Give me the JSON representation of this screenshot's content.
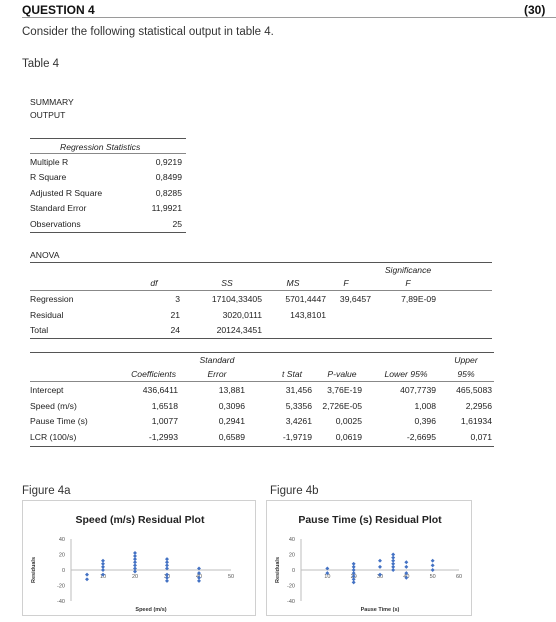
{
  "question": {
    "title": "QUESTION 4",
    "marks": "(30)"
  },
  "intro": "Consider the following statistical output in table 4.",
  "table_label": "Table 4",
  "summary_line1": "SUMMARY",
  "summary_line2": "OUTPUT",
  "regression_statistics": {
    "heading": "Regression Statistics",
    "rows": [
      {
        "label": "Multiple R",
        "value": "0,9219"
      },
      {
        "label": "R Square",
        "value": "0,8499"
      },
      {
        "label": "Adjusted R Square",
        "value": "0,8285"
      },
      {
        "label": "Standard Error",
        "value": "11,9921"
      },
      {
        "label": "Observations",
        "value": "25"
      }
    ]
  },
  "anova": {
    "title": "ANOVA",
    "headers": {
      "df": "df",
      "ss": "SS",
      "ms": "MS",
      "f": "F",
      "sig_line1": "Significance",
      "sig_line2": "F"
    },
    "rows": [
      {
        "label": "Regression",
        "df": "3",
        "ss": "17104,33405",
        "ms": "5701,4447",
        "f": "39,6457",
        "sig": "7,89E-09"
      },
      {
        "label": "Residual",
        "df": "21",
        "ss": "3020,0111",
        "ms": "143,8101",
        "f": "",
        "sig": ""
      },
      {
        "label": "Total",
        "df": "24",
        "ss": "20124,3451",
        "ms": "",
        "f": "",
        "sig": ""
      }
    ]
  },
  "coefficients": {
    "headers": {
      "coef": "Coefficients",
      "se_line1": "Standard",
      "se_line2": "Error",
      "t": "t Stat",
      "p": "P-value",
      "lower": "Lower 95%",
      "upper_line1": "Upper",
      "upper_line2": "95%"
    },
    "rows": [
      {
        "label": "Intercept",
        "coef": "436,6411",
        "se": "13,881",
        "t": "31,456",
        "p": "3,76E-19",
        "lower": "407,7739",
        "upper": "465,5083"
      },
      {
        "label": "Speed (m/s)",
        "coef": "1,6518",
        "se": "0,3096",
        "t": "5,3356",
        "p": "2,726E-05",
        "lower": "1,008",
        "upper": "2,2956"
      },
      {
        "label": "Pause Time (s)",
        "coef": "1,0077",
        "se": "0,2941",
        "t": "3,4261",
        "p": "0,0025",
        "lower": "0,396",
        "upper": "1,61934"
      },
      {
        "label": "LCR (100/s)",
        "coef": "-1,2993",
        "se": "0,6589",
        "t": "-1,9719",
        "p": "0,0619",
        "lower": "-2,6695",
        "upper": "0,071"
      }
    ]
  },
  "figures": [
    {
      "label": "Figure 4a"
    },
    {
      "label": "Figure 4b"
    }
  ],
  "chart_data": [
    {
      "type": "scatter",
      "title": "Speed (m/s)  Residual Plot",
      "xlabel": "Speed (m/s)",
      "ylabel": "Residuals",
      "xlim": [
        0,
        50
      ],
      "ylim": [
        -40,
        40
      ],
      "xticks": [
        0,
        10,
        20,
        30,
        40,
        50
      ],
      "yticks": [
        -40,
        -20,
        0,
        20,
        40
      ],
      "marker_color": "#4472c4",
      "x": [
        5,
        5,
        10,
        10,
        10,
        10,
        10,
        20,
        20,
        20,
        20,
        20,
        20,
        20,
        30,
        30,
        30,
        30,
        30,
        30,
        30,
        40,
        40,
        40,
        40
      ],
      "y": [
        -12,
        -6,
        12,
        8,
        4,
        0,
        -6,
        22,
        18,
        14,
        10,
        6,
        2,
        -2,
        14,
        10,
        6,
        2,
        -6,
        -10,
        -14,
        2,
        -4,
        -10,
        -14
      ]
    },
    {
      "type": "scatter",
      "title": "Pause Time (s)  Residual Plot",
      "xlabel": "Pause Time (s)",
      "ylabel": "Residuals",
      "xlim": [
        0,
        60
      ],
      "ylim": [
        -40,
        40
      ],
      "xticks": [
        0,
        10,
        20,
        30,
        40,
        50,
        60
      ],
      "yticks": [
        -40,
        -20,
        0,
        20,
        40
      ],
      "marker_color": "#4472c4",
      "x": [
        10,
        10,
        20,
        20,
        20,
        20,
        20,
        20,
        20,
        30,
        30,
        30,
        35,
        35,
        35,
        35,
        35,
        35,
        40,
        40,
        40,
        40,
        50,
        50,
        50
      ],
      "y": [
        2,
        -4,
        8,
        4,
        0,
        -4,
        -8,
        -12,
        -16,
        12,
        4,
        -6,
        20,
        16,
        12,
        8,
        4,
        0,
        10,
        4,
        -4,
        -10,
        12,
        6,
        0
      ]
    }
  ]
}
